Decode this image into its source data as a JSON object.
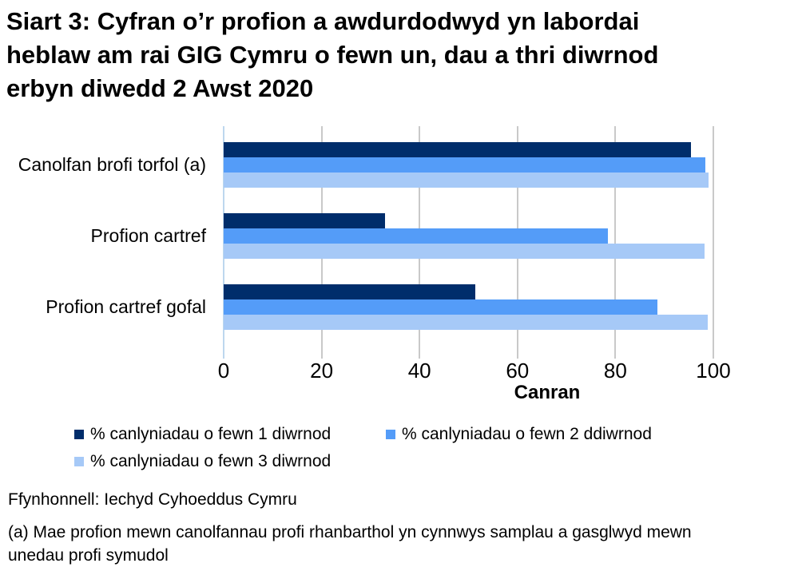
{
  "title": "Siart 3: Cyfran o’r profion a awdurdodwyd yn labordai heblaw am rai GIG Cymru o fewn un, dau a thri diwrnod erbyn diwedd 2 Awst 2020",
  "chart_data": {
    "type": "bar",
    "orientation": "horizontal",
    "categories": [
      "Canolfan brofi torfol (a)",
      "Profion cartref",
      "Profion cartref gofal"
    ],
    "series": [
      {
        "name": "% canlyniadau o fewn 1 diwrnod",
        "color": "#002d6b",
        "values": [
          95.4,
          33.0,
          51.4
        ]
      },
      {
        "name": "% canlyniadau o fewn 2 ddiwrnod",
        "color": "#549cf8",
        "values": [
          98.4,
          78.4,
          88.5
        ]
      },
      {
        "name": "% canlyniadau o fewn 3 diwrnod",
        "color": "#a6c9f7",
        "values": [
          99.0,
          98.2,
          98.8
        ]
      }
    ],
    "xlabel": "Canran",
    "xlim": [
      0,
      100
    ],
    "xticks": [
      0,
      20,
      40,
      60,
      80,
      100
    ],
    "grid": true,
    "legend_position": "bottom",
    "gridline_color": "#c9c9c9",
    "zero_line_color": "#bdd7ee"
  },
  "source": "Ffynhonnell: Iechyd Cyhoeddus Cymru",
  "footnote": "(a) Mae profion mewn canolfannau profi rhanbarthol yn cynnwys samplau a gasglwyd mewn unedau profi symudol"
}
